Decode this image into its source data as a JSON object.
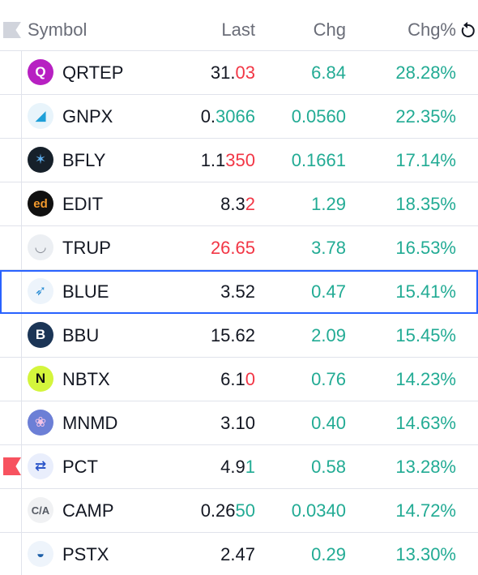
{
  "header": {
    "symbol": "Symbol",
    "last": "Last",
    "chg": "Chg",
    "chg_pct": "Chg%",
    "reset_icon": "reset-icon"
  },
  "colors": {
    "up": "#22ab94",
    "down": "#f23645",
    "selected_border": "#2962ff",
    "flag_red": "#f7525f"
  },
  "rows": [
    {
      "symbol": "QRTEP",
      "last_a": "31.",
      "last_b": "03",
      "last_dir": "down",
      "chg": "6.84",
      "pct": "28.28%",
      "logo_bg": "#b720c2",
      "logo": "Q",
      "logo_fg": "#ffffff"
    },
    {
      "symbol": "GNPX",
      "last_a": "0.",
      "last_b": "3066",
      "last_dir": "up",
      "chg": "0.0560",
      "pct": "22.35%",
      "logo_bg": "#e8f4fb",
      "logo": "◢",
      "logo_fg": "#1e9fd8"
    },
    {
      "symbol": "BFLY",
      "last_a": "1.1",
      "last_b": "350",
      "last_dir": "down",
      "chg": "0.1661",
      "pct": "17.14%",
      "logo_bg": "#16202a",
      "logo": "✶",
      "logo_fg": "#5fb0f0"
    },
    {
      "symbol": "EDIT",
      "last_a": "8.3",
      "last_b": "2",
      "last_dir": "down",
      "chg": "1.29",
      "pct": "18.35%",
      "logo_bg": "#111111",
      "logo": "ed",
      "logo_fg": "#f39a2d"
    },
    {
      "symbol": "TRUP",
      "last_a": "",
      "last_b": "26.65",
      "last_dir": "down",
      "chg": "3.78",
      "pct": "16.53%",
      "logo_bg": "#eceff3",
      "logo": "◡",
      "logo_fg": "#8a8f98"
    },
    {
      "symbol": "BLUE",
      "last_a": "3.52",
      "last_b": "",
      "last_dir": "up",
      "chg": "0.47",
      "pct": "15.41%",
      "logo_bg": "#edf4fb",
      "logo": "➶",
      "logo_fg": "#2d8fd5",
      "selected": true
    },
    {
      "symbol": "BBU",
      "last_a": "15.62",
      "last_b": "",
      "last_dir": "up",
      "chg": "2.09",
      "pct": "15.45%",
      "logo_bg": "#1b3556",
      "logo": "B",
      "logo_fg": "#ffffff"
    },
    {
      "symbol": "NBTX",
      "last_a": "6.1",
      "last_b": "0",
      "last_dir": "down",
      "chg": "0.76",
      "pct": "14.23%",
      "logo_bg": "#d4f53c",
      "logo": "N",
      "logo_fg": "#111111"
    },
    {
      "symbol": "MNMD",
      "last_a": "3.10",
      "last_b": "",
      "last_dir": "up",
      "chg": "0.40",
      "pct": "14.63%",
      "logo_bg": "#6c7fd6",
      "logo": "❀",
      "logo_fg": "#f3c3e6"
    },
    {
      "symbol": "PCT",
      "last_a": "4.9",
      "last_b": "1",
      "last_dir": "up",
      "chg": "0.58",
      "pct": "13.28%",
      "logo_bg": "#e9eefc",
      "logo": "⇄",
      "logo_fg": "#2c56c9",
      "flag": true
    },
    {
      "symbol": "CAMP",
      "last_a": "0.26",
      "last_b": "50",
      "last_dir": "up",
      "chg": "0.0340",
      "pct": "14.72%",
      "logo_bg": "#f0f1f3",
      "logo": "C/A",
      "logo_fg": "#555a63"
    },
    {
      "symbol": "PSTX",
      "last_a": "2.47",
      "last_b": "",
      "last_dir": "up",
      "chg": "0.29",
      "pct": "13.30%",
      "logo_bg": "#eef4fb",
      "logo": "◒",
      "logo_fg": "#1d5fa8"
    }
  ]
}
